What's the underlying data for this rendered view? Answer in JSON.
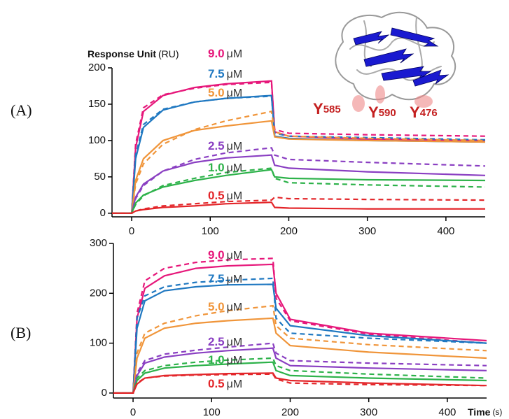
{
  "chart_data": [
    {
      "type": "line",
      "panel_label": "(A)",
      "y_label": "Response Unit",
      "y_unit": "(RU)",
      "xlim": [
        -25,
        450
      ],
      "xticks": [
        0,
        100,
        200,
        300,
        400
      ],
      "ylim": [
        -5,
        200
      ],
      "yticks": [
        0,
        50,
        100,
        150,
        200
      ],
      "x": [
        -25,
        0,
        5,
        15,
        40,
        80,
        120,
        178,
        182,
        200,
        300,
        450
      ],
      "annotations": [
        {
          "residue": "Y",
          "number": "585"
        },
        {
          "residue": "Y",
          "number": "590"
        },
        {
          "residue": "Y",
          "number": "476"
        }
      ],
      "series": [
        {
          "label": "9.0",
          "unit": "μM",
          "color": "#e6177a",
          "values": [
            0,
            0,
            90,
            140,
            162,
            173,
            178,
            182,
            112,
            106,
            102,
            100
          ],
          "dashed_values": [
            0,
            0,
            95,
            145,
            163,
            172,
            177,
            180,
            115,
            110,
            108,
            106
          ]
        },
        {
          "label": "7.5",
          "unit": "μM",
          "color": "#1f78c1",
          "values": [
            0,
            0,
            75,
            118,
            142,
            153,
            158,
            162,
            106,
            103,
            100,
            98
          ],
          "dashed_values": [
            0,
            0,
            80,
            122,
            143,
            153,
            158,
            161,
            110,
            106,
            104,
            101
          ]
        },
        {
          "label": "5.0",
          "unit": "μM",
          "color": "#f0953a",
          "values": [
            0,
            0,
            45,
            75,
            100,
            114,
            120,
            127,
            105,
            102,
            100,
            98
          ],
          "dashed_values": [
            0,
            0,
            40,
            68,
            95,
            115,
            127,
            140,
            112,
            106,
            103,
            100
          ]
        },
        {
          "label": "2.5",
          "unit": "μM",
          "color": "#8a3fc2",
          "values": [
            0,
            0,
            22,
            40,
            58,
            70,
            76,
            80,
            66,
            62,
            57,
            52
          ],
          "dashed_values": [
            0,
            0,
            20,
            38,
            58,
            74,
            83,
            90,
            80,
            74,
            70,
            65
          ]
        },
        {
          "label": "1.0",
          "unit": "μM",
          "color": "#2db24a",
          "values": [
            0,
            0,
            14,
            25,
            36,
            45,
            52,
            60,
            50,
            48,
            46,
            45
          ],
          "dashed_values": [
            0,
            0,
            12,
            24,
            38,
            48,
            56,
            62,
            48,
            42,
            39,
            36
          ]
        },
        {
          "label": "0.5",
          "unit": "μM",
          "color": "#e3262a",
          "values": [
            0,
            0,
            3,
            5,
            8,
            10,
            13,
            15,
            8,
            7,
            6,
            6
          ],
          "dashed_values": [
            0,
            0,
            3,
            6,
            10,
            13,
            16,
            18,
            22,
            20,
            19,
            18
          ]
        }
      ]
    },
    {
      "type": "line",
      "panel_label": "(B)",
      "x_label": "Time",
      "x_unit": "(s)",
      "xlim": [
        -25,
        450
      ],
      "xticks": [
        0,
        100,
        200,
        300,
        400
      ],
      "ylim": [
        -10,
        300
      ],
      "yticks": [
        0,
        100,
        200,
        300
      ],
      "x": [
        -25,
        0,
        5,
        15,
        40,
        80,
        120,
        178,
        182,
        200,
        300,
        450
      ],
      "series": [
        {
          "label": "9.0",
          "unit": "μM",
          "color": "#e6177a",
          "values": [
            0,
            0,
            150,
            210,
            235,
            250,
            255,
            258,
            200,
            148,
            120,
            105
          ],
          "dashed_values": [
            0,
            0,
            160,
            225,
            250,
            262,
            267,
            270,
            190,
            145,
            118,
            100
          ]
        },
        {
          "label": "7.5",
          "unit": "μM",
          "color": "#1f78c1",
          "values": [
            0,
            0,
            130,
            185,
            205,
            213,
            217,
            218,
            170,
            135,
            115,
            100
          ],
          "dashed_values": [
            0,
            0,
            150,
            195,
            213,
            222,
            226,
            230,
            150,
            120,
            110,
            100
          ]
        },
        {
          "label": "5.0",
          "unit": "μM",
          "color": "#f0953a",
          "values": [
            0,
            0,
            70,
            110,
            130,
            140,
            145,
            150,
            120,
            95,
            82,
            70
          ],
          "dashed_values": [
            0,
            0,
            80,
            120,
            140,
            155,
            165,
            175,
            135,
            110,
            97,
            85
          ]
        },
        {
          "label": "2.5",
          "unit": "μM",
          "color": "#8a3fc2",
          "values": [
            0,
            0,
            35,
            60,
            72,
            80,
            85,
            90,
            70,
            55,
            50,
            45
          ],
          "dashed_values": [
            0,
            0,
            40,
            65,
            78,
            86,
            92,
            100,
            80,
            65,
            60,
            55
          ]
        },
        {
          "label": "1.0",
          "unit": "μM",
          "color": "#2db24a",
          "values": [
            0,
            0,
            25,
            40,
            50,
            55,
            58,
            62,
            45,
            35,
            30,
            25
          ],
          "dashed_values": [
            0,
            0,
            30,
            45,
            55,
            62,
            66,
            70,
            55,
            45,
            38,
            30
          ]
        },
        {
          "label": "0.5",
          "unit": "μM",
          "color": "#e3262a",
          "values": [
            0,
            0,
            18,
            30,
            35,
            37,
            39,
            40,
            30,
            25,
            20,
            15
          ],
          "dashed_values": [
            0,
            0,
            20,
            30,
            34,
            36,
            37,
            38,
            28,
            20,
            17,
            15
          ]
        }
      ]
    }
  ]
}
